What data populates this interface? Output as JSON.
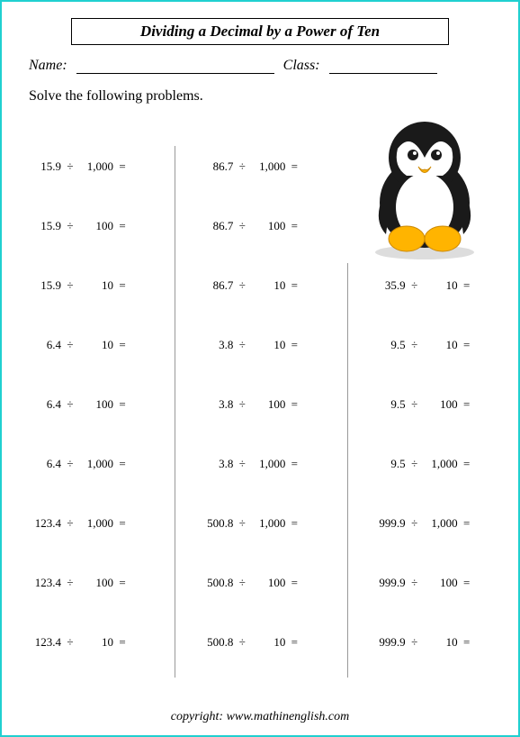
{
  "title": "Dividing a Decimal by a Power of Ten",
  "name_label": "Name:",
  "class_label": "Class:",
  "instruction": "Solve the following problems.",
  "division_sign": "÷",
  "equals_sign": "=",
  "copyright": "copyright:   www.mathinenglish.com",
  "problems": {
    "r0c0": {
      "a": "15.9",
      "b": "1,000"
    },
    "r0c1": {
      "a": "86.7",
      "b": "1,000"
    },
    "r1c0": {
      "a": "15.9",
      "b": "100"
    },
    "r1c1": {
      "a": "86.7",
      "b": "100"
    },
    "r2c0": {
      "a": "15.9",
      "b": "10"
    },
    "r2c1": {
      "a": "86.7",
      "b": "10"
    },
    "r2c2": {
      "a": "35.9",
      "b": "10"
    },
    "r3c0": {
      "a": "6.4",
      "b": "10"
    },
    "r3c1": {
      "a": "3.8",
      "b": "10"
    },
    "r3c2": {
      "a": "9.5",
      "b": "10"
    },
    "r4c0": {
      "a": "6.4",
      "b": "100"
    },
    "r4c1": {
      "a": "3.8",
      "b": "100"
    },
    "r4c2": {
      "a": "9.5",
      "b": "100"
    },
    "r5c0": {
      "a": "6.4",
      "b": "1,000"
    },
    "r5c1": {
      "a": "3.8",
      "b": "1,000"
    },
    "r5c2": {
      "a": "9.5",
      "b": "1,000"
    },
    "r6c0": {
      "a": "123.4",
      "b": "1,000"
    },
    "r6c1": {
      "a": "500.8",
      "b": "1,000"
    },
    "r6c2": {
      "a": "999.9",
      "b": "1,000"
    },
    "r7c0": {
      "a": "123.4",
      "b": "100"
    },
    "r7c1": {
      "a": "500.8",
      "b": "100"
    },
    "r7c2": {
      "a": "999.9",
      "b": "100"
    },
    "r8c0": {
      "a": "123.4",
      "b": "10"
    },
    "r8c1": {
      "a": "500.8",
      "b": "10"
    },
    "r8c2": {
      "a": "999.9",
      "b": "10"
    }
  },
  "style": {
    "border_color": "#20d0d0",
    "page_bg": "#ffffff",
    "text_color": "#000000",
    "separator_color": "#999999",
    "title_fontsize": 17,
    "body_fontsize": 13,
    "penguin_colors": {
      "body": "#1a1a1a",
      "belly": "#ffffff",
      "beak": "#ffb400",
      "feet": "#ffb400",
      "shadow": "#dddddd"
    }
  }
}
